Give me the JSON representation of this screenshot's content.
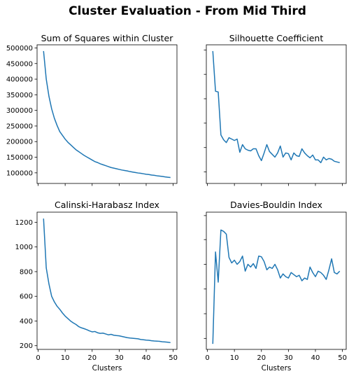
{
  "figure": {
    "suptitle": "Cluster Evaluation - From Mid Third"
  },
  "chart_data": [
    {
      "type": "line",
      "title": "Sum of Squares within Cluster",
      "xlabel": "",
      "ylabel": "",
      "xlim": [
        -0.4,
        51.4
      ],
      "ylim": [
        66000,
        510000
      ],
      "xticks": [
        0,
        10,
        20,
        30,
        40,
        50
      ],
      "show_xtick_labels": false,
      "yticks": [
        100000,
        150000,
        200000,
        250000,
        300000,
        350000,
        400000,
        450000,
        500000
      ],
      "ytick_labels": [
        "100000",
        "150000",
        "200000",
        "250000",
        "300000",
        "350000",
        "400000",
        "450000",
        "500000"
      ],
      "show_ytick_labels": true,
      "grid": false,
      "series_color": "#1f77b4",
      "x": [
        2,
        3,
        4,
        5,
        6,
        7,
        8,
        9,
        10,
        11,
        12,
        13,
        14,
        15,
        16,
        17,
        18,
        19,
        20,
        21,
        22,
        23,
        24,
        25,
        26,
        27,
        28,
        29,
        30,
        31,
        32,
        33,
        34,
        35,
        36,
        37,
        38,
        39,
        40,
        41,
        42,
        43,
        44,
        45,
        46,
        47,
        48,
        49
      ],
      "values": [
        490000,
        400000,
        345000,
        305000,
        275000,
        252000,
        232000,
        220000,
        208000,
        198000,
        190000,
        182000,
        174000,
        168000,
        162000,
        156000,
        151000,
        146000,
        141000,
        136000,
        133000,
        129000,
        126000,
        123000,
        120000,
        117000,
        115000,
        113000,
        111000,
        109000,
        107500,
        106000,
        104000,
        102500,
        101000,
        99500,
        98500,
        97000,
        95500,
        94500,
        93000,
        92000,
        90500,
        89500,
        88500,
        87000,
        86000,
        85000
      ]
    },
    {
      "type": "line",
      "title": "Silhouette Coefficient",
      "xlabel": "",
      "ylabel": "",
      "xlim": [
        -0.4,
        51.4
      ],
      "ylim": [
        0,
        1
      ],
      "xticks": [
        0,
        10,
        20,
        30,
        40,
        50
      ],
      "show_xtick_labels": false,
      "yticks": [
        0.083,
        0.259,
        0.435,
        0.611,
        0.787,
        0.963
      ],
      "show_ytick_labels": false,
      "grid": false,
      "series_color": "#1f77b4",
      "x": [
        2,
        3,
        4,
        5,
        6,
        7,
        8,
        9,
        10,
        11,
        12,
        13,
        14,
        15,
        16,
        17,
        18,
        19,
        20,
        21,
        22,
        23,
        24,
        25,
        26,
        27,
        28,
        29,
        30,
        31,
        32,
        33,
        34,
        35,
        36,
        37,
        38,
        39,
        40,
        41,
        42,
        43,
        44,
        45,
        46,
        47,
        48,
        49
      ],
      "values": [
        0.955,
        0.665,
        0.66,
        0.35,
        0.315,
        0.295,
        0.33,
        0.32,
        0.31,
        0.32,
        0.225,
        0.28,
        0.25,
        0.24,
        0.235,
        0.25,
        0.25,
        0.2,
        0.165,
        0.22,
        0.28,
        0.23,
        0.21,
        0.19,
        0.22,
        0.27,
        0.19,
        0.22,
        0.215,
        0.17,
        0.22,
        0.2,
        0.195,
        0.25,
        0.22,
        0.2,
        0.185,
        0.205,
        0.17,
        0.17,
        0.15,
        0.19,
        0.17,
        0.18,
        0.175,
        0.16,
        0.155,
        0.15
      ]
    },
    {
      "type": "line",
      "title": "Calinski-Harabasz Index",
      "xlabel": "Clusters",
      "ylabel": "",
      "xlim": [
        -0.4,
        51.4
      ],
      "ylim": [
        170,
        1282
      ],
      "xticks": [
        0,
        10,
        20,
        30,
        40,
        50
      ],
      "xtick_labels": [
        "0",
        "10",
        "20",
        "30",
        "40",
        "50"
      ],
      "show_xtick_labels": true,
      "yticks": [
        200,
        400,
        600,
        800,
        1000,
        1200
      ],
      "ytick_labels": [
        "200",
        "400",
        "600",
        "800",
        "1000",
        "1200"
      ],
      "show_ytick_labels": true,
      "grid": false,
      "series_color": "#1f77b4",
      "x": [
        2,
        3,
        4,
        5,
        6,
        7,
        8,
        9,
        10,
        11,
        12,
        13,
        14,
        15,
        16,
        17,
        18,
        19,
        20,
        21,
        22,
        23,
        24,
        25,
        26,
        27,
        28,
        29,
        30,
        31,
        32,
        33,
        34,
        35,
        36,
        37,
        38,
        39,
        40,
        41,
        42,
        43,
        44,
        45,
        46,
        47,
        48,
        49
      ],
      "values": [
        1230,
        830,
        700,
        600,
        555,
        520,
        495,
        465,
        440,
        420,
        400,
        385,
        372,
        355,
        345,
        338,
        330,
        320,
        312,
        315,
        305,
        300,
        302,
        295,
        288,
        292,
        285,
        282,
        280,
        275,
        270,
        265,
        262,
        260,
        258,
        256,
        250,
        248,
        245,
        244,
        240,
        238,
        237,
        235,
        232,
        230,
        228,
        225
      ]
    },
    {
      "type": "line",
      "title": "Davies-Bouldin Index",
      "xlabel": "Clusters",
      "ylabel": "",
      "xlim": [
        -0.4,
        51.4
      ],
      "ylim": [
        0,
        1
      ],
      "xticks": [
        0,
        10,
        20,
        30,
        40,
        50
      ],
      "xtick_labels": [
        "0",
        "10",
        "20",
        "30",
        "40",
        "50"
      ],
      "show_xtick_labels": true,
      "yticks": [
        0.08,
        0.26,
        0.44,
        0.62,
        0.8,
        0.975
      ],
      "show_ytick_labels": false,
      "grid": false,
      "series_color": "#1f77b4",
      "x": [
        2,
        3,
        4,
        5,
        6,
        7,
        8,
        9,
        10,
        11,
        12,
        13,
        14,
        15,
        16,
        17,
        18,
        19,
        20,
        21,
        22,
        23,
        24,
        25,
        26,
        27,
        28,
        29,
        30,
        31,
        32,
        33,
        34,
        35,
        36,
        37,
        38,
        39,
        40,
        41,
        42,
        43,
        44,
        45,
        46,
        47,
        48,
        49
      ],
      "values": [
        0.04,
        0.71,
        0.49,
        0.87,
        0.86,
        0.84,
        0.67,
        0.63,
        0.65,
        0.62,
        0.64,
        0.68,
        0.57,
        0.62,
        0.6,
        0.625,
        0.59,
        0.68,
        0.675,
        0.64,
        0.58,
        0.6,
        0.59,
        0.62,
        0.58,
        0.52,
        0.55,
        0.53,
        0.52,
        0.56,
        0.545,
        0.53,
        0.54,
        0.5,
        0.52,
        0.51,
        0.6,
        0.56,
        0.53,
        0.57,
        0.56,
        0.54,
        0.51,
        0.58,
        0.66,
        0.56,
        0.55,
        0.57
      ]
    }
  ]
}
